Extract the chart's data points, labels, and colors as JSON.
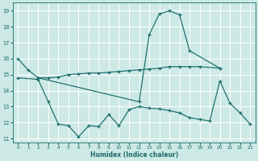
{
  "title": "",
  "xlabel": "Humidex (Indice chaleur)",
  "bg_color": "#cce9e5",
  "grid_color": "#ffffff",
  "line_color": "#1a6b6b",
  "line1_x": [
    0,
    1,
    2,
    12,
    13,
    14,
    15,
    16,
    17,
    20
  ],
  "line1_y": [
    16.0,
    15.3,
    14.8,
    13.3,
    17.5,
    18.8,
    19.0,
    18.75,
    16.5,
    15.4
  ],
  "line2_x": [
    2,
    3,
    4,
    5,
    6,
    7,
    8,
    9,
    10,
    11,
    12,
    13,
    14,
    15,
    16,
    17,
    18,
    20
  ],
  "line2_y": [
    14.8,
    14.8,
    14.85,
    15.0,
    15.05,
    15.1,
    15.1,
    15.15,
    15.2,
    15.25,
    15.3,
    15.35,
    15.4,
    15.5,
    15.5,
    15.5,
    15.5,
    15.4
  ],
  "line3_x": [
    0,
    2,
    3,
    4,
    5,
    6,
    7,
    8,
    9,
    10,
    11,
    12,
    13,
    14,
    15,
    16,
    17,
    18,
    19,
    20,
    21,
    22,
    23
  ],
  "line3_y": [
    14.8,
    14.7,
    13.3,
    11.9,
    11.8,
    11.1,
    11.8,
    11.75,
    12.5,
    11.8,
    12.8,
    13.0,
    12.9,
    12.85,
    12.75,
    12.6,
    12.3,
    12.2,
    12.1,
    14.6,
    13.2,
    12.6,
    11.9
  ],
  "ylim": [
    10.75,
    19.5
  ],
  "xlim": [
    -0.5,
    23.5
  ],
  "yticks": [
    11,
    12,
    13,
    14,
    15,
    16,
    17,
    18,
    19
  ],
  "xticks": [
    0,
    1,
    2,
    3,
    4,
    5,
    6,
    7,
    8,
    9,
    10,
    11,
    12,
    13,
    14,
    15,
    16,
    17,
    18,
    19,
    20,
    21,
    22,
    23
  ]
}
